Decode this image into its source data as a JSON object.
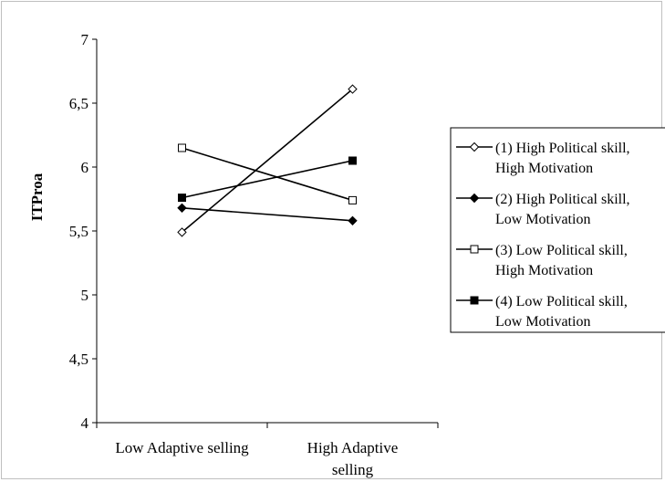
{
  "chart_data": {
    "type": "line",
    "title": "",
    "xlabel": "",
    "ylabel": "ITProa",
    "categories": [
      [
        "Low Adaptive selling"
      ],
      [
        "High Adaptive",
        "selling"
      ]
    ],
    "ylim": [
      4,
      7
    ],
    "yticks": [
      "4",
      "4,5",
      "5",
      "5,5",
      "6",
      "6,5",
      "7"
    ],
    "ytick_values": [
      4,
      4.5,
      5,
      5.5,
      6,
      6.5,
      7
    ],
    "grid": false,
    "legend_position": "right",
    "series": [
      {
        "name": [
          "(1) High Political skill,",
          "High Motivation"
        ],
        "values": [
          5.49,
          6.61
        ],
        "marker": "diamond",
        "filled": false
      },
      {
        "name": [
          "(2) High Political skill,",
          "Low Motivation"
        ],
        "values": [
          5.68,
          5.58
        ],
        "marker": "diamond",
        "filled": true
      },
      {
        "name": [
          "(3) Low Political skill,",
          "High Motivation"
        ],
        "values": [
          6.15,
          5.74
        ],
        "marker": "square",
        "filled": false
      },
      {
        "name": [
          "(4) Low Political skill,",
          "Low Motivation"
        ],
        "values": [
          5.76,
          6.05
        ],
        "marker": "square",
        "filled": true
      }
    ],
    "colors": {
      "line": "#000000",
      "axis": "#000000",
      "frame": "#bfbfbf"
    }
  }
}
